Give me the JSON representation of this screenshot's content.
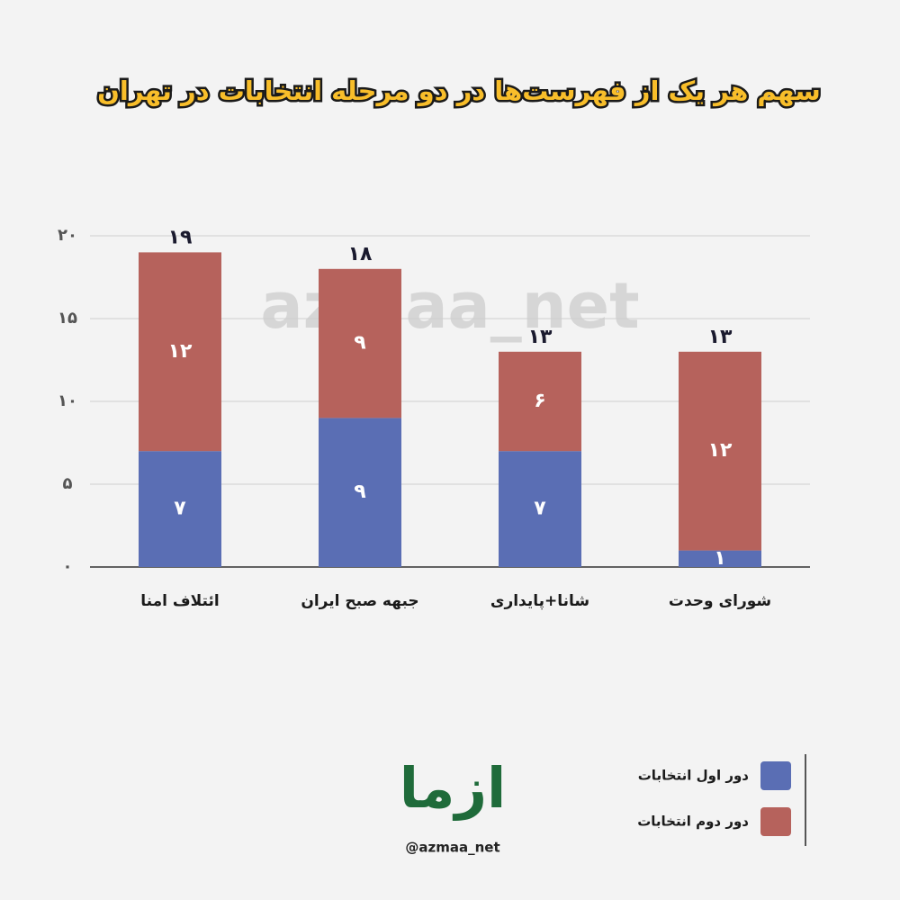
{
  "chart_data": {
    "type": "stacked_bar",
    "title": "سهم هر یک از فهرست‌ها در دو مرحله انتخابات در تهران",
    "categories": [
      "ائتلاف امنا",
      "جبهه صبح ایران",
      "شانا+پایداری",
      "شورای وحدت"
    ],
    "series": [
      {
        "name": "دور اول انتخابات",
        "color": "#5a6eb4",
        "values": [
          7,
          9,
          7,
          1
        ],
        "value_labels": [
          "۷",
          "۹",
          "۷",
          "۱"
        ]
      },
      {
        "name": "دور دوم انتخابات",
        "color": "#b6625c",
        "values": [
          12,
          9,
          6,
          12
        ],
        "value_labels": [
          "۱۲",
          "۹",
          "۶",
          "۱۲"
        ]
      }
    ],
    "totals": [
      19,
      18,
      13,
      13
    ],
    "total_labels": [
      "۱۹",
      "۱۸",
      "۱۳",
      "۱۳"
    ],
    "ylim": [
      0,
      20
    ],
    "yticks": [
      {
        "value": 0,
        "label": "۰"
      },
      {
        "value": 5,
        "label": "۵"
      },
      {
        "value": 10,
        "label": "۱۰"
      },
      {
        "value": 15,
        "label": "۱۵"
      },
      {
        "value": 20,
        "label": "۲۰"
      }
    ],
    "grid": true,
    "legend": "bottom-right",
    "watermark": "azmaa_net",
    "logo_text": "ازما",
    "logo_handle": "@azmaa_net"
  }
}
